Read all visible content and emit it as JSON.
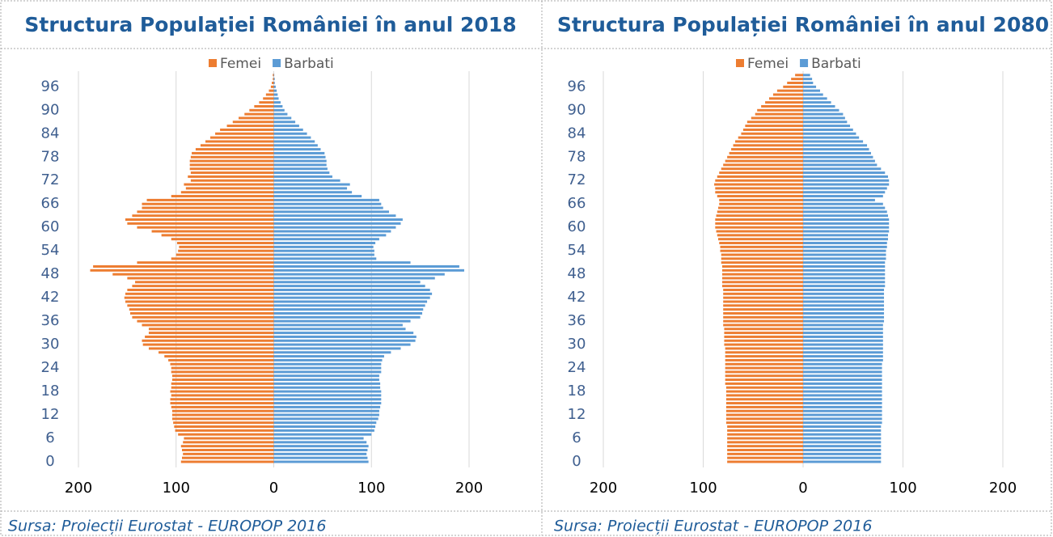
{
  "chart_data": [
    {
      "type": "bar",
      "title": "Structura Populației României în anul 2018",
      "note": "Sursa: Proiecții Eurostat - EUROPOP 2016",
      "categories": [
        0,
        null,
        null,
        null,
        null,
        null,
        6,
        null,
        null,
        null,
        null,
        null,
        12,
        null,
        null,
        null,
        null,
        null,
        18,
        null,
        null,
        null,
        null,
        null,
        24,
        null,
        null,
        null,
        null,
        null,
        30,
        null,
        null,
        null,
        null,
        null,
        36,
        null,
        null,
        null,
        null,
        null,
        42,
        null,
        null,
        null,
        null,
        null,
        48,
        null,
        null,
        null,
        null,
        null,
        54,
        null,
        null,
        null,
        null,
        null,
        60,
        null,
        null,
        null,
        null,
        null,
        66,
        null,
        null,
        null,
        null,
        null,
        72,
        null,
        null,
        null,
        null,
        null,
        78,
        null,
        null,
        null,
        null,
        null,
        84,
        null,
        null,
        null,
        null,
        null,
        90,
        null,
        null,
        null,
        null,
        null,
        96,
        null,
        null,
        null
      ],
      "series": [
        {
          "name": "Femei",
          "color": "#ED7D31",
          "values": [
            -95,
            -94,
            -93,
            -94,
            -95,
            -93,
            -92,
            -98,
            -101,
            -102,
            -103,
            -104,
            -104,
            -104,
            -105,
            -106,
            -106,
            -105,
            -106,
            -105,
            -105,
            -104,
            -104,
            -105,
            -105,
            -106,
            -108,
            -112,
            -118,
            -128,
            -134,
            -135,
            -132,
            -128,
            -128,
            -135,
            -140,
            -145,
            -147,
            -148,
            -150,
            -152,
            -153,
            -152,
            -150,
            -145,
            -142,
            -150,
            -165,
            -188,
            -185,
            -140,
            -105,
            -100,
            -98,
            -97,
            -99,
            -105,
            -115,
            -125,
            -140,
            -150,
            -152,
            -145,
            -140,
            -135,
            -135,
            -130,
            -105,
            -95,
            -90,
            -92,
            -85,
            -88,
            -85,
            -86,
            -86,
            -86,
            -85,
            -84,
            -80,
            -75,
            -70,
            -65,
            -60,
            -55,
            -48,
            -42,
            -36,
            -30,
            -25,
            -20,
            -15,
            -11,
            -8,
            -5,
            -3,
            -2,
            -1,
            -1
          ]
        },
        {
          "name": "Barbati",
          "color": "#5B9BD5",
          "values": [
            97,
            96,
            95,
            96,
            97,
            95,
            92,
            100,
            103,
            104,
            105,
            107,
            108,
            108,
            109,
            110,
            110,
            110,
            110,
            109,
            109,
            108,
            108,
            110,
            110,
            110,
            111,
            113,
            120,
            130,
            140,
            145,
            146,
            143,
            135,
            132,
            140,
            150,
            152,
            153,
            155,
            157,
            160,
            162,
            160,
            155,
            150,
            165,
            175,
            195,
            190,
            140,
            105,
            103,
            103,
            102,
            104,
            108,
            115,
            120,
            125,
            130,
            132,
            125,
            118,
            112,
            110,
            108,
            90,
            80,
            75,
            78,
            68,
            60,
            57,
            55,
            54,
            54,
            53,
            52,
            48,
            45,
            42,
            38,
            34,
            30,
            26,
            22,
            18,
            14,
            11,
            9,
            7,
            5,
            4,
            3,
            2,
            1,
            1,
            0.5
          ]
        }
      ],
      "xlim": [
        -200,
        200
      ],
      "xticks": [
        {
          "value": -200,
          "label": "200"
        },
        {
          "value": -100,
          "label": "100"
        },
        0,
        100,
        200
      ],
      "grid": true,
      "legend": "top"
    },
    {
      "type": "bar",
      "title": "Structura Populației României în anul 2080",
      "note": "Sursa: Proiecții Eurostat - EUROPOP 2016",
      "categories": [
        0,
        null,
        null,
        null,
        null,
        null,
        6,
        null,
        null,
        null,
        null,
        null,
        12,
        null,
        null,
        null,
        null,
        null,
        18,
        null,
        null,
        null,
        null,
        null,
        24,
        null,
        null,
        null,
        null,
        null,
        30,
        null,
        null,
        null,
        null,
        null,
        36,
        null,
        null,
        null,
        null,
        null,
        42,
        null,
        null,
        null,
        null,
        null,
        48,
        null,
        null,
        null,
        null,
        null,
        54,
        null,
        null,
        null,
        null,
        null,
        60,
        null,
        null,
        null,
        null,
        null,
        66,
        null,
        null,
        null,
        null,
        null,
        72,
        null,
        null,
        null,
        null,
        null,
        78,
        null,
        null,
        null,
        null,
        null,
        84,
        null,
        null,
        null,
        null,
        null,
        90,
        null,
        null,
        null,
        null,
        null,
        96,
        null,
        null,
        null
      ],
      "series": [
        {
          "name": "Femei",
          "color": "#ED7D31",
          "values": [
            -76,
            -76,
            -76,
            -76,
            -76,
            -76,
            -76,
            -76,
            -76,
            -76,
            -77,
            -77,
            -77,
            -77,
            -77,
            -77,
            -77,
            -77,
            -77,
            -77,
            -78,
            -78,
            -78,
            -78,
            -78,
            -78,
            -78,
            -78,
            -78,
            -78,
            -79,
            -79,
            -79,
            -79,
            -79,
            -80,
            -80,
            -80,
            -80,
            -80,
            -80,
            -80,
            -80,
            -80,
            -80,
            -81,
            -81,
            -81,
            -81,
            -81,
            -81,
            -82,
            -82,
            -82,
            -83,
            -83,
            -84,
            -85,
            -86,
            -87,
            -88,
            -88,
            -88,
            -87,
            -86,
            -85,
            -84,
            -84,
            -86,
            -88,
            -88,
            -89,
            -88,
            -86,
            -84,
            -82,
            -80,
            -78,
            -76,
            -74,
            -72,
            -70,
            -68,
            -65,
            -62,
            -60,
            -58,
            -56,
            -52,
            -48,
            -46,
            -42,
            -38,
            -34,
            -30,
            -26,
            -20,
            -16,
            -12,
            -8
          ]
        },
        {
          "name": "Barbati",
          "color": "#5B9BD5",
          "values": [
            78,
            78,
            78,
            78,
            78,
            78,
            78,
            78,
            78,
            78,
            79,
            79,
            79,
            79,
            79,
            79,
            79,
            79,
            79,
            79,
            79,
            79,
            79,
            79,
            79,
            79,
            80,
            80,
            80,
            80,
            80,
            80,
            80,
            80,
            80,
            80,
            81,
            81,
            81,
            81,
            81,
            81,
            81,
            81,
            81,
            82,
            82,
            82,
            82,
            82,
            82,
            82,
            83,
            83,
            83,
            84,
            84,
            85,
            85,
            86,
            86,
            86,
            86,
            85,
            84,
            82,
            80,
            72,
            80,
            82,
            84,
            86,
            86,
            85,
            82,
            78,
            74,
            72,
            70,
            68,
            66,
            64,
            60,
            56,
            53,
            50,
            47,
            44,
            42,
            40,
            36,
            32,
            28,
            24,
            20,
            17,
            13,
            10,
            9,
            7
          ]
        }
      ],
      "xlim": [
        -200,
        200
      ],
      "xticks": [
        {
          "value": -200,
          "label": "200"
        },
        {
          "value": -100,
          "label": "100"
        },
        0,
        100,
        200
      ],
      "grid": true,
      "legend": "top"
    }
  ]
}
